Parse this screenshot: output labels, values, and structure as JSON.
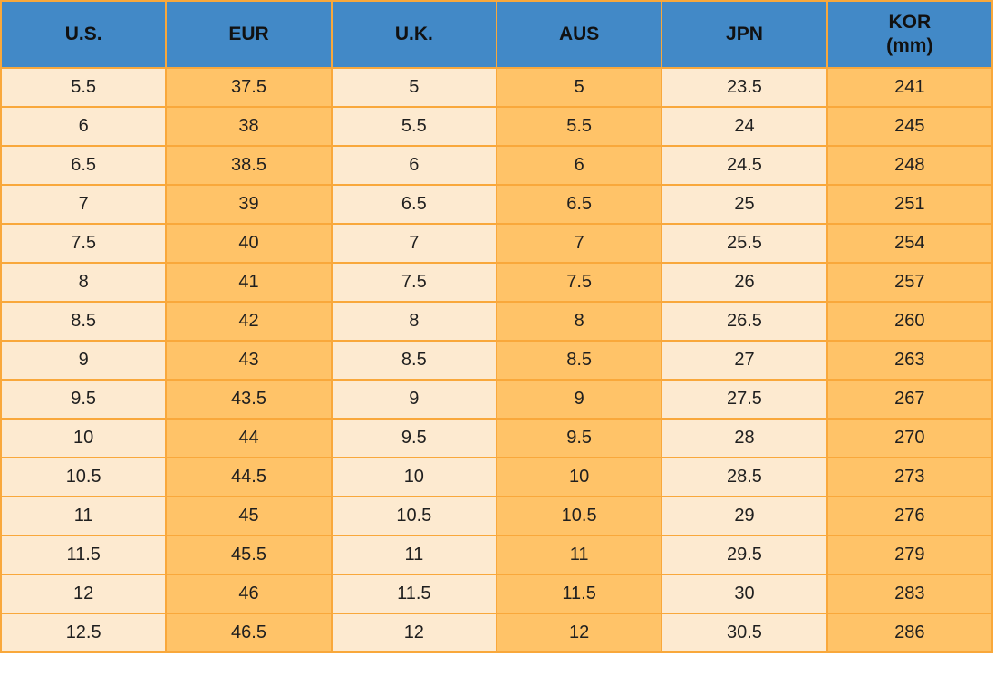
{
  "chart_data": {
    "type": "table",
    "columns": [
      "U.S.",
      "EUR",
      "U.K.",
      "AUS",
      "JPN",
      "KOR (mm)"
    ],
    "rows": [
      [
        "5.5",
        "37.5",
        "5",
        "5",
        "23.5",
        "241"
      ],
      [
        "6",
        "38",
        "5.5",
        "5.5",
        "24",
        "245"
      ],
      [
        "6.5",
        "38.5",
        "6",
        "6",
        "24.5",
        "248"
      ],
      [
        "7",
        "39",
        "6.5",
        "6.5",
        "25",
        "251"
      ],
      [
        "7.5",
        "40",
        "7",
        "7",
        "25.5",
        "254"
      ],
      [
        "8",
        "41",
        "7.5",
        "7.5",
        "26",
        "257"
      ],
      [
        "8.5",
        "42",
        "8",
        "8",
        "26.5",
        "260"
      ],
      [
        "9",
        "43",
        "8.5",
        "8.5",
        "27",
        "263"
      ],
      [
        "9.5",
        "43.5",
        "9",
        "9",
        "27.5",
        "267"
      ],
      [
        "10",
        "44",
        "9.5",
        "9.5",
        "28",
        "270"
      ],
      [
        "10.5",
        "44.5",
        "10",
        "10",
        "28.5",
        "273"
      ],
      [
        "11",
        "45",
        "10.5",
        "10.5",
        "29",
        "276"
      ],
      [
        "11.5",
        "45.5",
        "11",
        "11",
        "29.5",
        "279"
      ],
      [
        "12",
        "46",
        "11.5",
        "11.5",
        "30",
        "283"
      ],
      [
        "12.5",
        "46.5",
        "12",
        "12",
        "30.5",
        "286"
      ]
    ]
  },
  "header": {
    "us": "U.S.",
    "eur": "EUR",
    "uk": "U.K.",
    "aus": "AUS",
    "jpn": "JPN",
    "kor_line1": "KOR",
    "kor_line2": "(mm)"
  },
  "colors": {
    "header_bg": "#4289C7",
    "header_text": "#111111",
    "cell_light_bg": "#FDEAD0",
    "cell_orange_bg": "#FFC368",
    "border": "#F9A83B",
    "cell_text": "#1F1F1F",
    "page_bg": "#FFFFFF"
  }
}
